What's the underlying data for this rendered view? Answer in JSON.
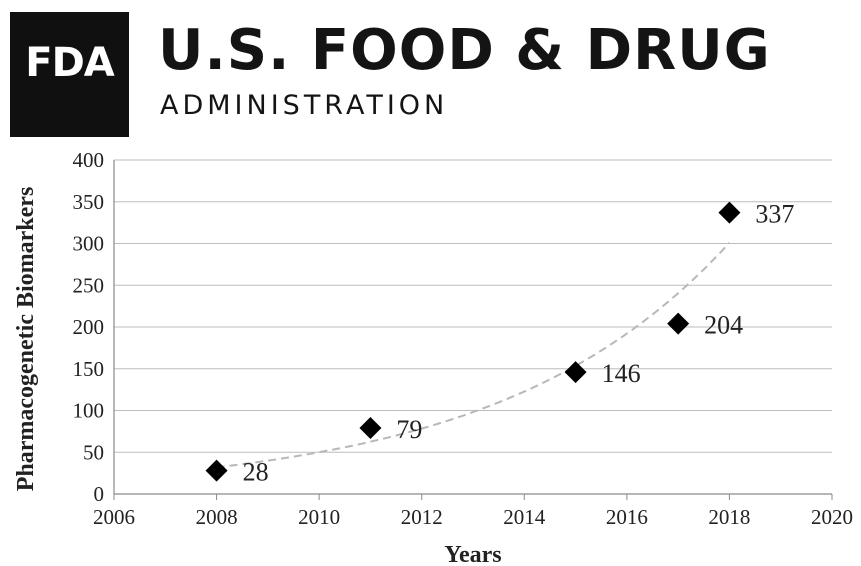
{
  "header": {
    "logo_text": "FDA",
    "agency_name": "U.S. FOOD & DRUG",
    "agency_subtitle": "ADMINISTRATION"
  },
  "chart_data": {
    "type": "scatter",
    "title": "",
    "xlabel": "Years",
    "ylabel": "Pharmacogenetic Biomarkers",
    "xlim": [
      2006,
      2020
    ],
    "ylim": [
      0,
      400
    ],
    "xticks": [
      2006,
      2008,
      2010,
      2012,
      2014,
      2016,
      2018,
      2020
    ],
    "yticks": [
      0,
      50,
      100,
      150,
      200,
      250,
      300,
      350,
      400
    ],
    "grid": true,
    "legend": "none",
    "marker": "diamond",
    "marker_color": "#000000",
    "trendline": {
      "type": "exponential",
      "style": "dashed",
      "color": "#b8b8b8"
    },
    "series": [
      {
        "x": [
          2008,
          2011,
          2015,
          2017,
          2018
        ],
        "y": [
          28,
          79,
          146,
          204,
          337
        ],
        "labels": [
          "28",
          "79",
          "146",
          "204",
          "337"
        ]
      }
    ]
  }
}
